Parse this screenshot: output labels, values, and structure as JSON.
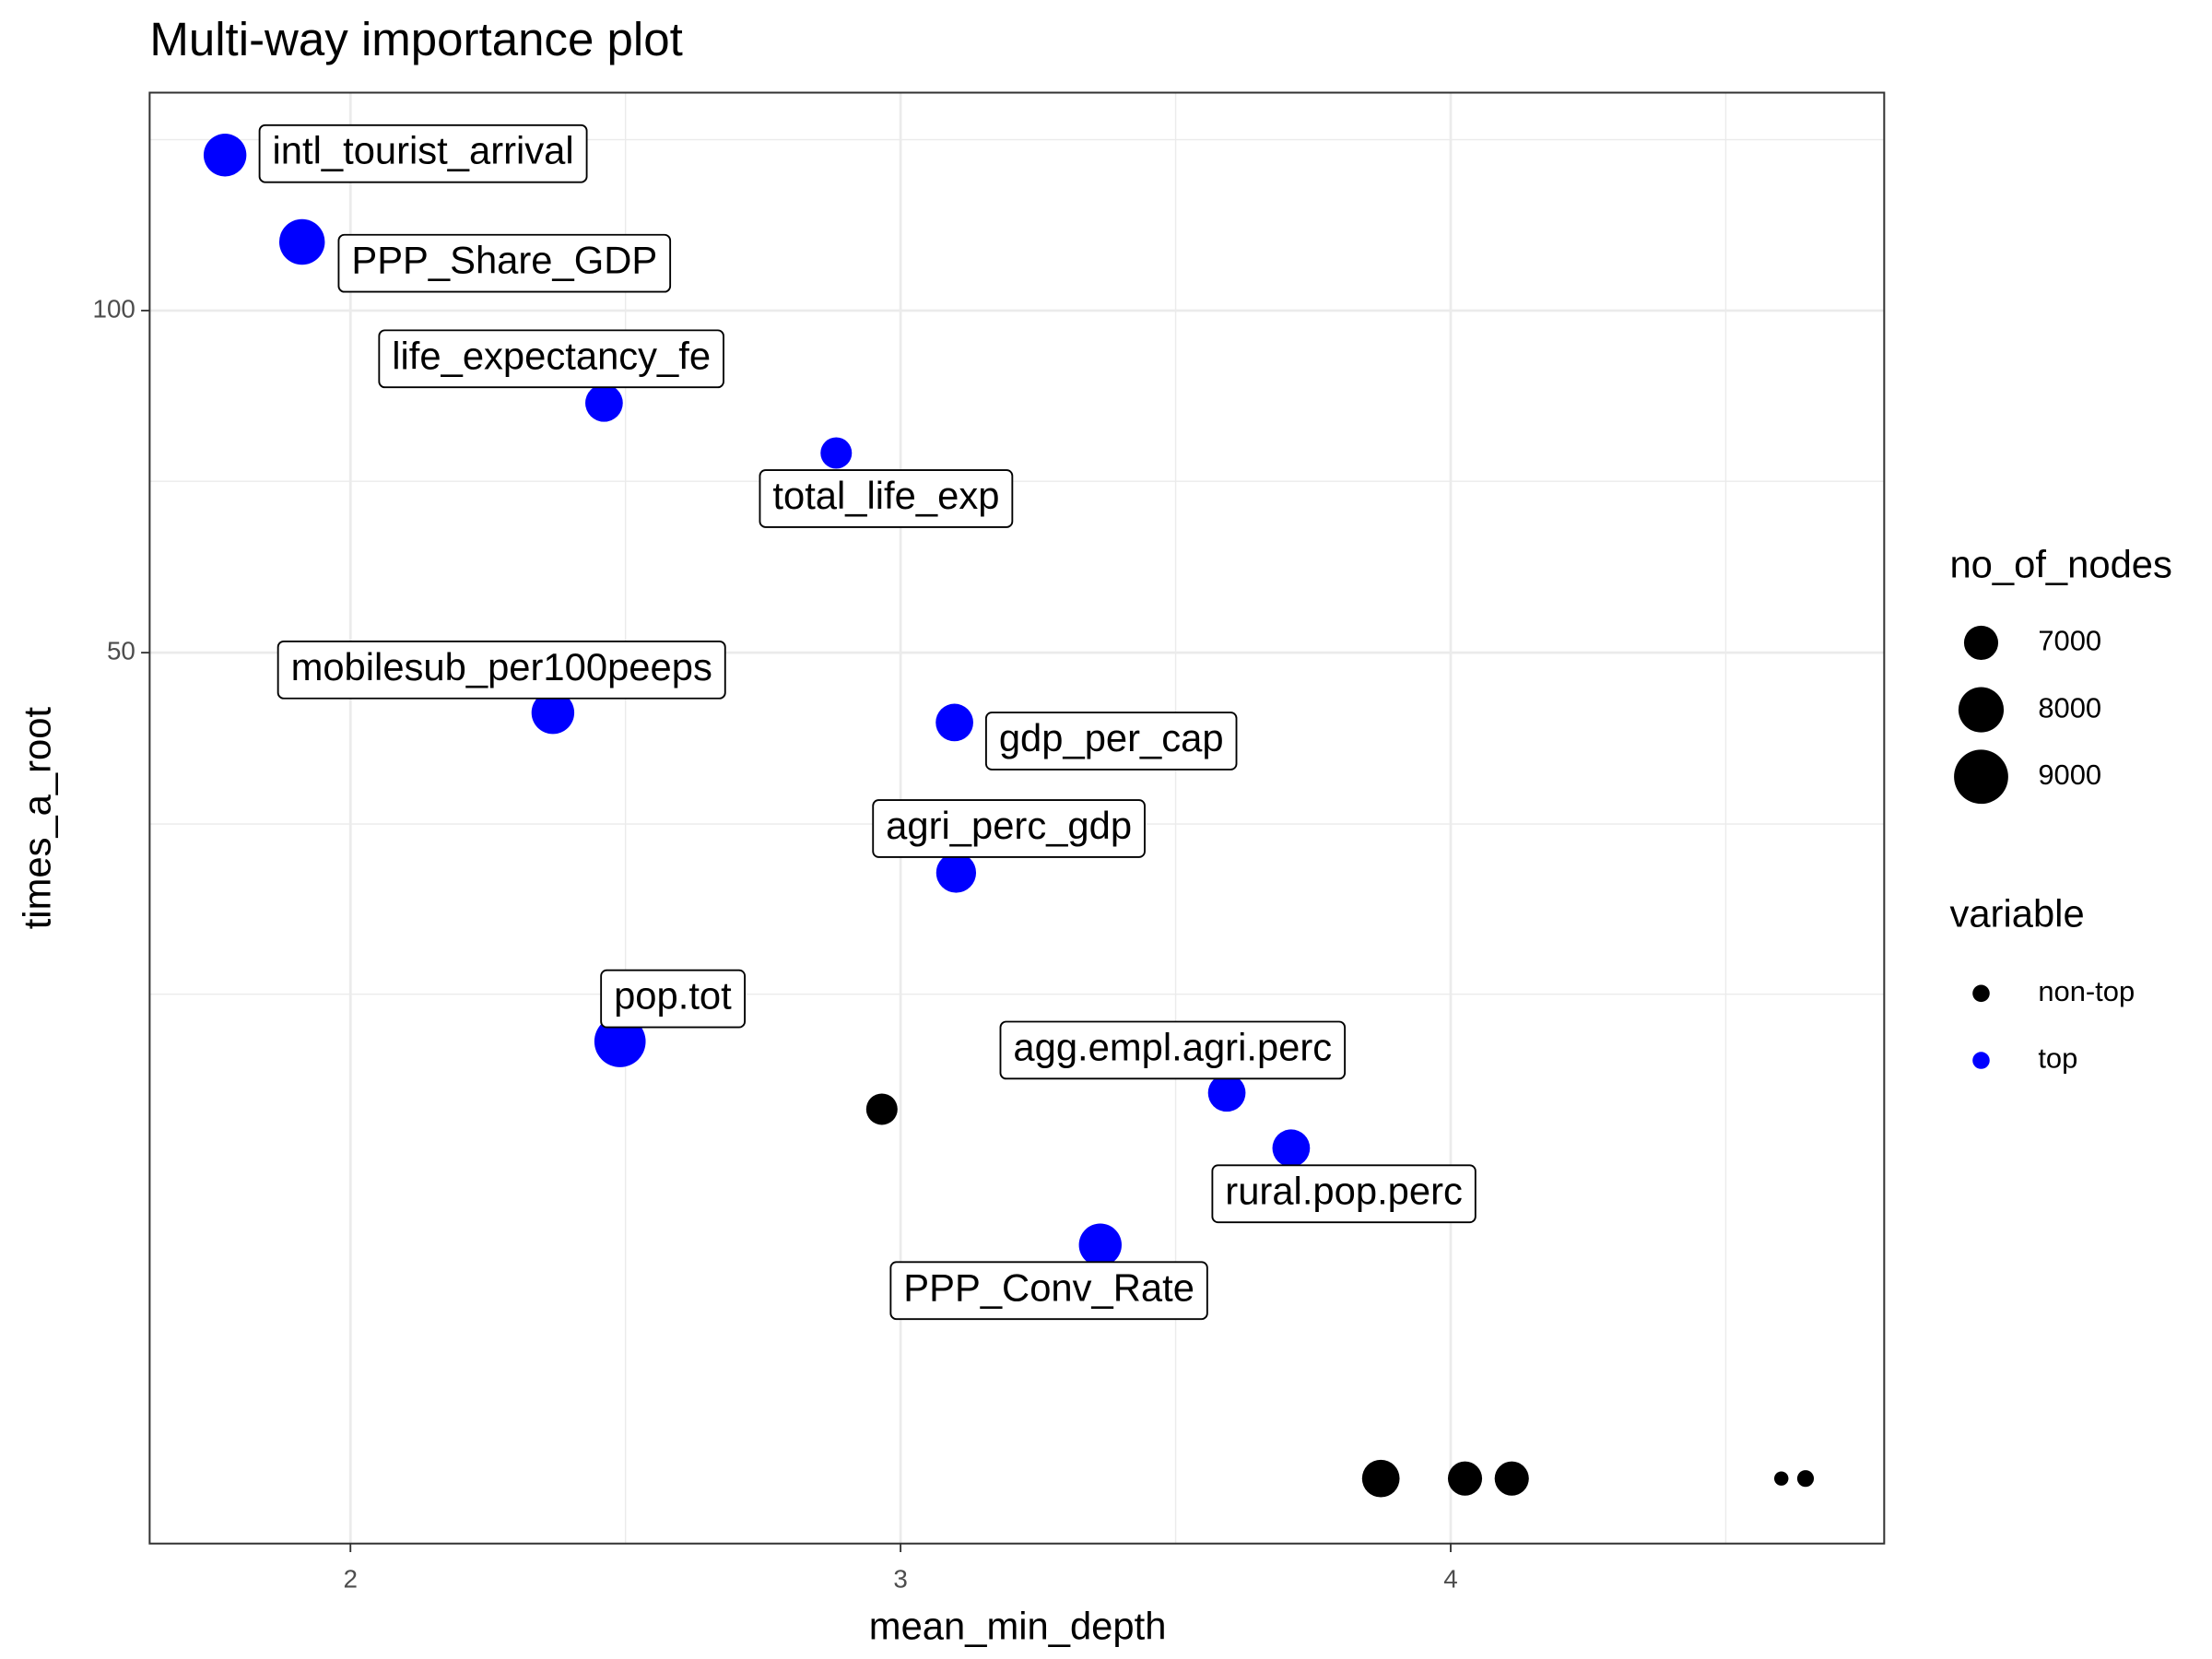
{
  "chart_data": {
    "type": "scatter",
    "title": "Multi-way importance plot",
    "x_label": "mean_min_depth",
    "y_label": "times_a_root",
    "xlim": [
      1.635,
      4.788
    ],
    "ylim": [
      -0.31,
      140.8
    ],
    "y_scale": "sqrt",
    "xticks": [
      2,
      3,
      4
    ],
    "yticks": [
      50,
      100
    ],
    "x_minor_grid": [
      2.5,
      3.5,
      4.5
    ],
    "y_minor_grid": [
      17.2,
      31.4,
      72.9,
      131.4
    ],
    "grid": true,
    "legend_position": "right",
    "size_legend": {
      "title": "no_of_nodes",
      "values": [
        7000,
        8000,
        9000
      ]
    },
    "color_legend_title": "variable",
    "series": [
      {
        "name": "non-top",
        "color": "#000000",
        "x": [
          2.966,
          3.873,
          4.026,
          4.111,
          4.601,
          4.645
        ],
        "values": [
          10.0,
          0,
          0,
          0,
          0,
          0
        ],
        "sizes": [
          6788,
          7272,
          7000,
          7000,
          5903,
          5990
        ]
      },
      {
        "name": "top",
        "color": "#0000ff",
        "x": [
          1.772,
          1.912,
          2.461,
          2.883,
          2.368,
          3.098,
          3.101,
          2.49,
          3.593,
          3.71,
          3.363
        ],
        "values": [
          128.4,
          112.1,
          84.8,
          77.1,
          43.0,
          41.9,
          26.9,
          14.0,
          10.9,
          8.0,
          4.0
        ],
        "sizes": [
          7747,
          8032,
          7272,
          6788,
          7747,
          7272,
          7479,
          8659,
          7272,
          7272,
          7747
        ],
        "labels": [
          "intl_tourist_arrival",
          "PPP_Share_GDP",
          "life_expectancy_fe",
          "total_life_exp",
          "mobilesub_per100peeps",
          "gdp_per_cap",
          "agri_perc_gdp",
          "pop.tot",
          "agg.empl.agri.perc",
          "rural.pop.perc",
          "PPP_Conv_Rate"
        ]
      }
    ]
  }
}
